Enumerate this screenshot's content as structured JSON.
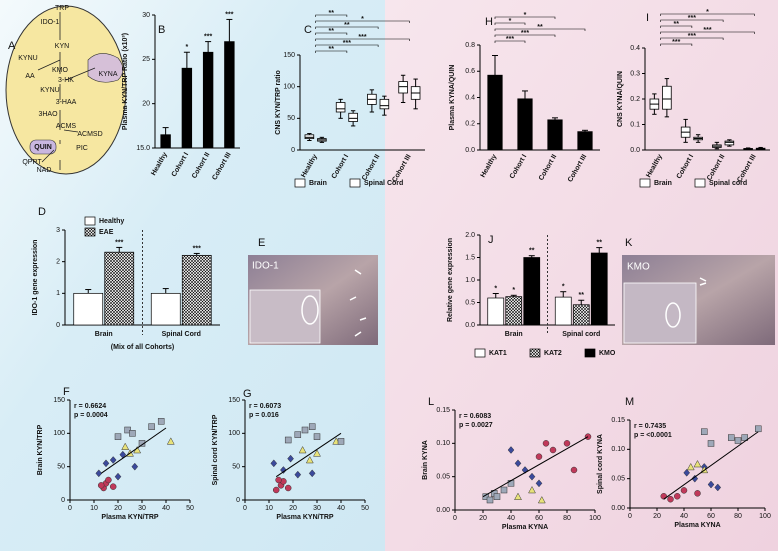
{
  "diagram": {
    "panel": "A",
    "labels": [
      "TRP",
      "IDO-1",
      "KYN",
      "KYNU",
      "KMO",
      "KYNA",
      "AA",
      "3-HK",
      "KYNU",
      "3-HAA",
      "3HAO",
      "ACMS",
      "ACMSD",
      "QUIN",
      "PIC",
      "QPRT",
      "NAD"
    ]
  },
  "images": [
    {
      "panel": "E",
      "label": "IDO-1"
    },
    {
      "panel": "K",
      "label": "KMO"
    }
  ],
  "chart_data": [
    {
      "type": "bar",
      "panel": "B",
      "ylabel": "Plasma KYN/TRP Ratio (x10³)",
      "categories": [
        "Healthy",
        "Cohort I",
        "Cohort II",
        "Cohort III"
      ],
      "values": [
        16.5,
        24,
        25.8,
        27
      ],
      "errors": [
        0.8,
        1.8,
        1.2,
        2.5
      ],
      "annotations": [
        null,
        "*",
        "***",
        "***"
      ],
      "color": "#000000",
      "ylim": [
        15,
        30
      ],
      "yticks": [
        {
          "value": 15,
          "label": "15.0"
        },
        20,
        25,
        30
      ]
    },
    {
      "type": "box",
      "panel": "C",
      "ylabel": "CNS KYN/TRP ratio",
      "categories": [
        "Healthy",
        "Cohort I",
        "Cohort II",
        "Cohort III"
      ],
      "series": [
        {
          "name": "Brain",
          "stats": [
            [
              15,
              18,
              20,
              24,
              26
            ],
            [
              50,
              60,
              65,
              75,
              80
            ],
            [
              60,
              72,
              80,
              88,
              95
            ],
            [
              75,
              90,
              100,
              108,
              118
            ]
          ]
        },
        {
          "name": "Spinal Cord",
          "stats": [
            [
              12,
              14,
              16,
              18,
              20
            ],
            [
              38,
              45,
              50,
              58,
              62
            ],
            [
              55,
              65,
              70,
              80,
              85
            ],
            [
              65,
              80,
              90,
              100,
              112
            ]
          ]
        }
      ],
      "brackets": [
        "**",
        "***",
        "***",
        "**",
        "**",
        "*",
        "**"
      ],
      "ylim": [
        0,
        150
      ],
      "yticks": [
        0,
        50,
        100,
        150
      ],
      "legend": "bottom"
    },
    {
      "type": "bar",
      "panel": "H",
      "ylabel": "Plasma KYNA/QUIN",
      "categories": [
        "Healthy",
        "Cohort I",
        "Cohort II",
        "Cohort III"
      ],
      "values": [
        0.57,
        0.39,
        0.23,
        0.14
      ],
      "errors": [
        0.15,
        0.06,
        0.015,
        0.01
      ],
      "color": "#000000",
      "brackets": [
        "***",
        "***",
        "**",
        "*",
        "*"
      ],
      "ylim": [
        0,
        0.8
      ],
      "yticks": [
        {
          "value": 0,
          "label": "0.0"
        },
        {
          "value": 0.2,
          "label": "0.2"
        },
        {
          "value": 0.4,
          "label": "0.4"
        },
        {
          "value": 0.6,
          "label": "0.6"
        },
        {
          "value": 0.8,
          "label": "0.8"
        }
      ]
    },
    {
      "type": "box",
      "panel": "I",
      "ylabel": "CNS KYNA/QUIN",
      "categories": [
        "Healthy",
        "Cohort I",
        "Cohort II",
        "Cohort III"
      ],
      "series": [
        {
          "name": "Brain",
          "stats": [
            [
              0.14,
              0.16,
              0.18,
              0.2,
              0.22
            ],
            [
              0.03,
              0.05,
              0.07,
              0.09,
              0.12
            ],
            [
              0.005,
              0.01,
              0.015,
              0.02,
              0.03
            ],
            [
              0,
              0.002,
              0.004,
              0.006,
              0.008
            ]
          ]
        },
        {
          "name": "Spinal cord",
          "stats": [
            [
              0.13,
              0.16,
              0.2,
              0.25,
              0.28
            ],
            [
              0.03,
              0.04,
              0.045,
              0.05,
              0.06
            ],
            [
              0.015,
              0.02,
              0.03,
              0.035,
              0.04
            ],
            [
              0,
              0.003,
              0.005,
              0.007,
              0.01
            ]
          ]
        }
      ],
      "brackets": [
        "***",
        "***",
        "***",
        "**",
        "***",
        "*"
      ],
      "ylim": [
        0,
        0.4
      ],
      "yticks": [
        {
          "value": 0,
          "label": "0.0"
        },
        {
          "value": 0.1,
          "label": "0.1"
        },
        {
          "value": 0.2,
          "label": "0.2"
        },
        {
          "value": 0.3,
          "label": "0.3"
        },
        {
          "value": 0.4,
          "label": "0.4"
        }
      ],
      "legend": "bottom"
    },
    {
      "type": "bar",
      "panel": "D",
      "ylabel": "IDO-1 gene expression",
      "xlabel": "(Mix of all Cohorts)",
      "categories": [
        "Brain",
        "Spinal Cord"
      ],
      "series": [
        {
          "name": "Healthy",
          "color": "#ffffff",
          "values": [
            1,
            1
          ],
          "errors": [
            0.12,
            0.15
          ]
        },
        {
          "name": "EAE",
          "color": "#ffffff",
          "hatch": true,
          "values": [
            2.3,
            2.2
          ],
          "errors": [
            0.15,
            0.06
          ],
          "annotations": [
            "***",
            "***"
          ]
        }
      ],
      "ylim": [
        0,
        3
      ],
      "yticks": [
        0,
        1,
        2,
        3
      ],
      "legend": "top"
    },
    {
      "type": "bar",
      "panel": "J",
      "ylabel": "Relative gene expression",
      "categories": [
        "Brain",
        "Spinal cord"
      ],
      "series": [
        {
          "name": "KAT1",
          "color": "#ffffff",
          "values": [
            0.6,
            0.62
          ],
          "errors": [
            0.1,
            0.12
          ],
          "annotations": [
            "*",
            "*"
          ]
        },
        {
          "name": "KAT2",
          "color": "#ffffff",
          "hatch": true,
          "values": [
            0.63,
            0.45
          ],
          "errors": [
            0.03,
            0.1
          ],
          "annotations": [
            "*",
            "**"
          ]
        },
        {
          "name": "KMO",
          "color": "#000000",
          "values": [
            1.5,
            1.6
          ],
          "errors": [
            0.04,
            0.12
          ],
          "annotations": [
            "**",
            "**"
          ]
        }
      ],
      "ylim": [
        0,
        2
      ],
      "yticks": [
        {
          "value": 0,
          "label": "0.0"
        },
        {
          "value": 0.5,
          "label": "0.5"
        },
        {
          "value": 1,
          "label": "1.0"
        },
        {
          "value": 1.5,
          "label": "1.5"
        },
        {
          "value": 2,
          "label": "2.0"
        }
      ],
      "legend": "bottom"
    },
    {
      "type": "scatter",
      "panel": "F",
      "xlabel": "Plasma KYN/TRP",
      "ylabel": "Brain KYN/TRP",
      "stats": [
        "r = 0.6624",
        "p = 0.0004"
      ],
      "series": [
        {
          "color": "#c0395a",
          "marker": "circle",
          "x": [
            14,
            15,
            16,
            18,
            13
          ],
          "y": [
            18,
            25,
            30,
            20,
            22
          ]
        },
        {
          "color": "#3b4a9c",
          "marker": "diamond",
          "x": [
            12,
            15,
            18,
            20,
            22,
            27
          ],
          "y": [
            40,
            55,
            60,
            35,
            68,
            50
          ]
        },
        {
          "color": "#e8e27a",
          "marker": "triangle",
          "x": [
            23,
            25,
            28,
            42
          ],
          "y": [
            80,
            70,
            75,
            88
          ]
        },
        {
          "color": "#9ea8b8",
          "marker": "square",
          "x": [
            20,
            24,
            26,
            30,
            34,
            38
          ],
          "y": [
            95,
            105,
            100,
            85,
            110,
            118
          ]
        }
      ],
      "fit": {
        "x": [
          13,
          40
        ],
        "y": [
          40,
          108
        ]
      },
      "xlim": [
        0,
        50
      ],
      "xticks": [
        0,
        10,
        20,
        30,
        40,
        50
      ],
      "ylim": [
        0,
        150
      ],
      "yticks": [
        0,
        50,
        100,
        150
      ]
    },
    {
      "type": "scatter",
      "panel": "G",
      "xlabel": "Plasma KYN/TRP",
      "ylabel": "Spinal cord KYN/TRP",
      "stats": [
        "r = 0.6073",
        "p = 0.016"
      ],
      "series": [
        {
          "color": "#c0395a",
          "marker": "circle",
          "x": [
            13,
            15,
            16,
            18,
            14
          ],
          "y": [
            15,
            22,
            28,
            18,
            30
          ]
        },
        {
          "color": "#3b4a9c",
          "marker": "diamond",
          "x": [
            12,
            16,
            19,
            22,
            28
          ],
          "y": [
            55,
            45,
            62,
            38,
            40
          ]
        },
        {
          "color": "#e8e27a",
          "marker": "triangle",
          "x": [
            24,
            27,
            30,
            38
          ],
          "y": [
            75,
            60,
            70,
            88
          ]
        },
        {
          "color": "#9ea8b8",
          "marker": "square",
          "x": [
            18,
            22,
            25,
            28,
            30,
            40
          ],
          "y": [
            90,
            98,
            105,
            110,
            95,
            88
          ]
        }
      ],
      "fit": {
        "x": [
          13,
          40
        ],
        "y": [
          35,
          100
        ]
      },
      "xlim": [
        0,
        50
      ],
      "xticks": [
        0,
        10,
        20,
        30,
        40,
        50
      ],
      "ylim": [
        0,
        150
      ],
      "yticks": [
        0,
        50,
        100,
        150
      ]
    },
    {
      "type": "scatter",
      "panel": "L",
      "xlabel": "Plasma KYNA",
      "ylabel": "Brain KYNA",
      "stats": [
        "r = 0.6083",
        "p = 0.0027"
      ],
      "series": [
        {
          "color": "#c0395a",
          "marker": "circle",
          "x": [
            60,
            70,
            80,
            85,
            95,
            65
          ],
          "y": [
            0.08,
            0.09,
            0.1,
            0.06,
            0.11,
            0.1
          ]
        },
        {
          "color": "#3b4a9c",
          "marker": "diamond",
          "x": [
            40,
            45,
            50,
            55,
            60
          ],
          "y": [
            0.09,
            0.07,
            0.06,
            0.05,
            0.04
          ]
        },
        {
          "color": "#e8e27a",
          "marker": "triangle",
          "x": [
            45,
            55,
            62
          ],
          "y": [
            0.02,
            0.03,
            0.015
          ]
        },
        {
          "color": "#9ea8b8",
          "marker": "square",
          "x": [
            22,
            25,
            28,
            30,
            35,
            40
          ],
          "y": [
            0.02,
            0.015,
            0.025,
            0.02,
            0.03,
            0.04
          ]
        }
      ],
      "fit": {
        "x": [
          20,
          95
        ],
        "y": [
          0.02,
          0.11
        ]
      },
      "xlim": [
        0,
        100
      ],
      "xticks": [
        0,
        20,
        40,
        60,
        80,
        100
      ],
      "ylim": [
        0,
        0.15
      ],
      "yticks": [
        {
          "value": 0,
          "label": "0.00"
        },
        {
          "value": 0.05,
          "label": "0.05"
        },
        {
          "value": 0.1,
          "label": "0.10"
        },
        {
          "value": 0.15,
          "label": "0.15"
        }
      ]
    },
    {
      "type": "scatter",
      "panel": "M",
      "xlabel": "Plasma KYNA",
      "ylabel": "Spinal cord KYNA",
      "stats": [
        "r = 0.7435",
        "p = <0.0001"
      ],
      "series": [
        {
          "color": "#c0395a",
          "marker": "circle",
          "x": [
            25,
            30,
            35,
            40,
            50
          ],
          "y": [
            0.02,
            0.015,
            0.02,
            0.03,
            0.025
          ]
        },
        {
          "color": "#3b4a9c",
          "marker": "diamond",
          "x": [
            42,
            48,
            55,
            60,
            65
          ],
          "y": [
            0.06,
            0.05,
            0.07,
            0.04,
            0.035
          ]
        },
        {
          "color": "#e8e27a",
          "marker": "triangle",
          "x": [
            45,
            50,
            55
          ],
          "y": [
            0.07,
            0.075,
            0.065
          ]
        },
        {
          "color": "#9ea8b8",
          "marker": "square",
          "x": [
            55,
            60,
            75,
            80,
            85,
            95
          ],
          "y": [
            0.13,
            0.11,
            0.12,
            0.115,
            0.12,
            0.135
          ]
        }
      ],
      "fit": {
        "x": [
          25,
          95
        ],
        "y": [
          0.015,
          0.13
        ]
      },
      "xlim": [
        0,
        100
      ],
      "xticks": [
        0,
        20,
        40,
        60,
        80,
        100
      ],
      "ylim": [
        0,
        0.15
      ],
      "yticks": [
        {
          "value": 0,
          "label": "0.00"
        },
        {
          "value": 0.05,
          "label": "0.05"
        },
        {
          "value": 0.1,
          "label": "0.10"
        },
        {
          "value": 0.15,
          "label": "0.15"
        }
      ]
    }
  ]
}
